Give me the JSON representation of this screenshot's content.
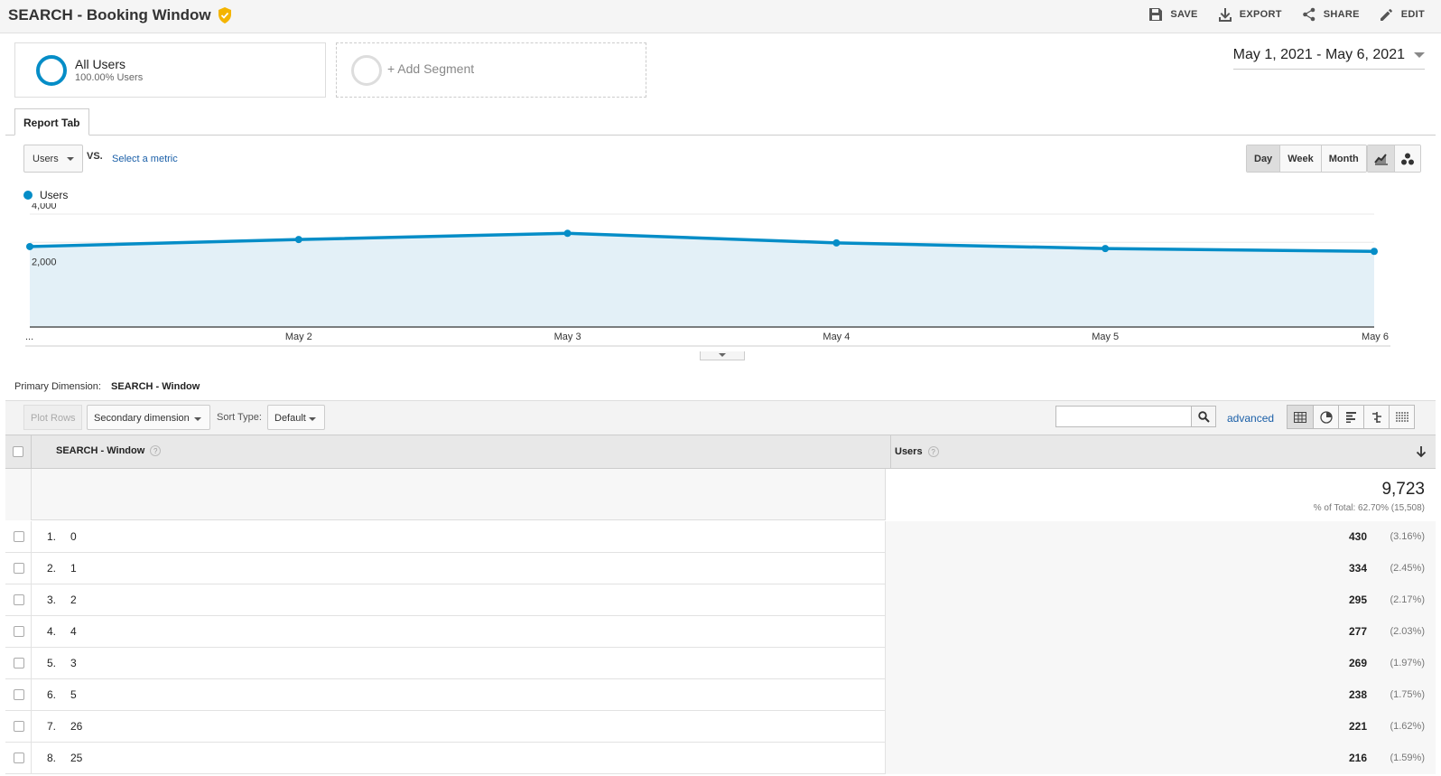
{
  "header": {
    "title": "SEARCH - Booking Window",
    "actions": [
      {
        "label": "SAVE",
        "icon": "save-icon"
      },
      {
        "label": "EXPORT",
        "icon": "export-icon"
      },
      {
        "label": "SHARE",
        "icon": "share-icon"
      },
      {
        "label": "EDIT",
        "icon": "edit-icon"
      }
    ]
  },
  "segments": {
    "all_users": {
      "name": "All Users",
      "sub": "100.00% Users"
    },
    "add_segment": "+ Add Segment"
  },
  "date_range": "May 1, 2021 - May 6, 2021",
  "tab": "Report Tab",
  "metric": {
    "selected": "Users",
    "vs": "VS.",
    "select_metric": "Select a metric"
  },
  "period_buttons": [
    "Day",
    "Week",
    "Month"
  ],
  "legend": "Users",
  "colors": {
    "accent": "#058dc7",
    "area": "#e3f0f7",
    "link": "#1a5fa8"
  },
  "chart_data": {
    "type": "area",
    "x": [
      "May 1",
      "May 2",
      "May 3",
      "May 4",
      "May 5",
      "May 6"
    ],
    "x_tick_labels": [
      "...",
      "May 2",
      "May 3",
      "May 4",
      "May 5",
      "May 6"
    ],
    "series": [
      {
        "name": "Users",
        "values": [
          2850,
          3100,
          3320,
          2980,
          2780,
          2680
        ]
      }
    ],
    "y_ticks": [
      "4,000",
      "2,000"
    ],
    "ylim": [
      0,
      4000
    ]
  },
  "primary_dimension": {
    "label": "Primary Dimension:",
    "value": "SEARCH - Window"
  },
  "toolbar": {
    "plot_rows": "Plot Rows",
    "secondary_dimension": "Secondary dimension",
    "sort_type_label": "Sort Type:",
    "sort_type_value": "Default",
    "advanced": "advanced"
  },
  "table": {
    "columns": [
      "SEARCH - Window",
      "Users"
    ],
    "totals": {
      "value": "9,723",
      "sub": "% of Total: 62.70% (15,508)"
    },
    "rows": [
      {
        "num": "1.",
        "dim": "0",
        "users": "430",
        "pct": "(3.16%)"
      },
      {
        "num": "2.",
        "dim": "1",
        "users": "334",
        "pct": "(2.45%)"
      },
      {
        "num": "3.",
        "dim": "2",
        "users": "295",
        "pct": "(2.17%)"
      },
      {
        "num": "4.",
        "dim": "4",
        "users": "277",
        "pct": "(2.03%)"
      },
      {
        "num": "5.",
        "dim": "3",
        "users": "269",
        "pct": "(1.97%)"
      },
      {
        "num": "6.",
        "dim": "5",
        "users": "238",
        "pct": "(1.75%)"
      },
      {
        "num": "7.",
        "dim": "26",
        "users": "221",
        "pct": "(1.62%)"
      },
      {
        "num": "8.",
        "dim": "25",
        "users": "216",
        "pct": "(1.59%)"
      }
    ]
  }
}
